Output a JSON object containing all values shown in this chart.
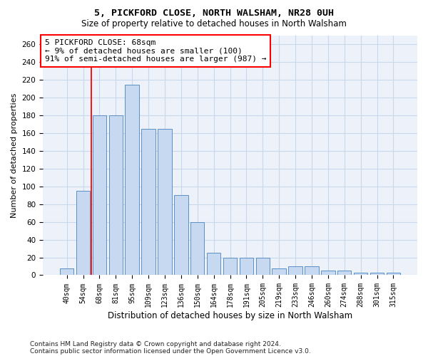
{
  "title1": "5, PICKFORD CLOSE, NORTH WALSHAM, NR28 0UH",
  "title2": "Size of property relative to detached houses in North Walsham",
  "xlabel": "Distribution of detached houses by size in North Walsham",
  "ylabel": "Number of detached properties",
  "categories": [
    "40sqm",
    "54sqm",
    "68sqm",
    "81sqm",
    "95sqm",
    "109sqm",
    "123sqm",
    "136sqm",
    "150sqm",
    "164sqm",
    "178sqm",
    "191sqm",
    "205sqm",
    "219sqm",
    "233sqm",
    "246sqm",
    "260sqm",
    "274sqm",
    "288sqm",
    "301sqm",
    "315sqm"
  ],
  "values": [
    8,
    95,
    180,
    180,
    215,
    165,
    165,
    90,
    60,
    25,
    20,
    20,
    20,
    8,
    10,
    10,
    5,
    5,
    3,
    3,
    3
  ],
  "bar_color": "#c6d9f0",
  "bar_edge_color": "#5b8fc5",
  "annotation_text": "5 PICKFORD CLOSE: 68sqm\n← 9% of detached houses are smaller (100)\n91% of semi-detached houses are larger (987) →",
  "grid_color": "#c8d8ea",
  "background_color": "#edf2fa",
  "footnote1": "Contains HM Land Registry data © Crown copyright and database right 2024.",
  "footnote2": "Contains public sector information licensed under the Open Government Licence v3.0.",
  "ylim": [
    0,
    270
  ],
  "yticks": [
    0,
    20,
    40,
    60,
    80,
    100,
    120,
    140,
    160,
    180,
    200,
    220,
    240,
    260
  ],
  "red_line_index": 1.5,
  "title1_fontsize": 9.5,
  "title2_fontsize": 8.5
}
